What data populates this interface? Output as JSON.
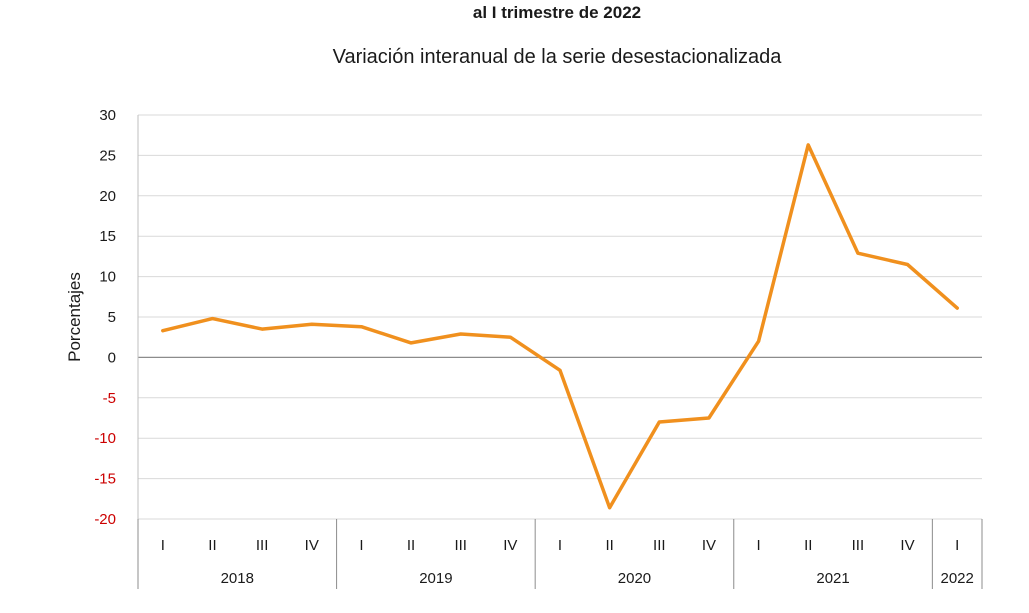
{
  "chart_data": {
    "type": "line",
    "title": "al I trimestre de 2022",
    "subtitle": "Variación interanual de la serie desestacionalizada",
    "ylabel": "Porcentajes",
    "xlabel": "",
    "ylim": [
      -20,
      30
    ],
    "yticks": [
      30,
      25,
      20,
      15,
      10,
      5,
      0,
      -5,
      -10,
      -15,
      -20
    ],
    "negative_tick_color": "#cc0000",
    "positive_tick_color": "#1a1a1a",
    "grid": true,
    "legend": "none",
    "line_color": "#f0901e",
    "years": [
      {
        "label": "2018",
        "quarters": [
          "I",
          "II",
          "III",
          "IV"
        ]
      },
      {
        "label": "2019",
        "quarters": [
          "I",
          "II",
          "III",
          "IV"
        ]
      },
      {
        "label": "2020",
        "quarters": [
          "I",
          "II",
          "III",
          "IV"
        ]
      },
      {
        "label": "2021",
        "quarters": [
          "I",
          "II",
          "III",
          "IV"
        ]
      },
      {
        "label": "2022",
        "quarters": [
          "I"
        ]
      }
    ],
    "series": [
      {
        "values": [
          3.3,
          4.8,
          3.5,
          4.1,
          3.8,
          1.8,
          2.9,
          2.5,
          -1.6,
          -18.6,
          -8.0,
          -7.5,
          2.0,
          26.3,
          12.9,
          11.5,
          6.1
        ]
      }
    ]
  }
}
